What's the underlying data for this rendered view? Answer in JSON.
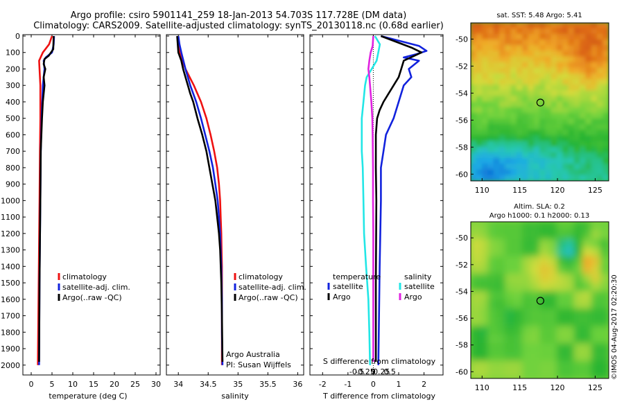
{
  "title_line1": "Argo profile: csiro 5901141_259 18-Jan-2013 54.703S 117.728E (DM data)",
  "title_line2": "Climatology: CARS2009. Satellite-adjusted climatology: synTS_20130118.nc (0.68d earlier)",
  "colors": {
    "red": "#ee1111",
    "blue": "#1122dd",
    "black": "#000000",
    "cyan": "#22e6e6",
    "magenta": "#e022e0"
  },
  "chart_data": [
    {
      "type": "line",
      "id": "temperature",
      "xlabel": "temperature (deg C)",
      "ylabel": "",
      "xlim": [
        -2,
        31
      ],
      "ylim": [
        0,
        2060
      ],
      "y_inverted": true,
      "xticks": [
        0,
        5,
        10,
        15,
        20,
        25,
        30
      ],
      "xtick_labels": [
        "0",
        "5",
        "10",
        "15",
        "20",
        "25",
        "30"
      ],
      "yticks": [
        0,
        100,
        200,
        300,
        400,
        500,
        600,
        700,
        800,
        900,
        1000,
        1100,
        1200,
        1300,
        1400,
        1500,
        1600,
        1700,
        1800,
        1900,
        2000
      ],
      "ytick_labels": [
        "0",
        "100",
        "200",
        "300",
        "400",
        "500",
        "600",
        "700",
        "800",
        "900",
        "1000",
        "1100",
        "1200",
        "1300",
        "1400",
        "1500",
        "1600",
        "1700",
        "1800",
        "1900",
        "2000"
      ],
      "legend": [
        "climatology",
        "satellite-adj. clim.",
        "Argo(..raw -QC)"
      ],
      "series": [
        {
          "name": "climatology",
          "color": "red",
          "depth": [
            0,
            50,
            100,
            150,
            200,
            300,
            500,
            700,
            1000,
            1500,
            2000
          ],
          "values": [
            5.0,
            4.3,
            2.8,
            1.9,
            2.0,
            2.2,
            2.2,
            2.1,
            2.0,
            1.8,
            1.6
          ]
        },
        {
          "name": "satellite-adj. clim.",
          "color": "blue",
          "depth": [
            0,
            50,
            100,
            130,
            150,
            200,
            300,
            500,
            700,
            1000,
            1500,
            2000
          ],
          "values": [
            5.5,
            5.4,
            5.0,
            3.5,
            3.0,
            3.2,
            2.8,
            2.5,
            2.3,
            2.2,
            2.0,
            1.9
          ]
        },
        {
          "name": "Argo(..raw -QC)",
          "color": "black",
          "depth": [
            0,
            80,
            120,
            140,
            170,
            200,
            250,
            300,
            400,
            500,
            700,
            1000,
            1500,
            1980
          ],
          "values": [
            5.4,
            5.3,
            4.2,
            3.2,
            3.0,
            3.4,
            3.0,
            3.2,
            2.8,
            2.6,
            2.3,
            2.2,
            2.0,
            1.9
          ]
        }
      ]
    },
    {
      "type": "line",
      "id": "salinity",
      "xlabel": "salinity",
      "xlim": [
        33.8,
        36.1
      ],
      "ylim": [
        0,
        2060
      ],
      "y_inverted": true,
      "xticks": [
        34,
        34.5,
        35,
        35.5,
        36
      ],
      "xtick_labels": [
        "34",
        "34.5",
        "35",
        "35.5",
        "36"
      ],
      "legend": [
        "climatology",
        "satellite-adj. clim.",
        "Argo(..raw -QC)"
      ],
      "annotation_lines": [
        "Argo Australia",
        "PI: Susan Wijffels"
      ],
      "series": [
        {
          "name": "climatology",
          "color": "red",
          "depth": [
            0,
            100,
            200,
            300,
            400,
            500,
            600,
            700,
            800,
            900,
            1000,
            1100,
            1200,
            1300,
            1400,
            1500,
            1700,
            2000
          ],
          "values": [
            34.0,
            34.02,
            34.12,
            34.26,
            34.38,
            34.47,
            34.54,
            34.6,
            34.65,
            34.68,
            34.7,
            34.71,
            34.72,
            34.725,
            34.73,
            34.73,
            34.73,
            34.73
          ]
        },
        {
          "name": "satellite-adj. clim.",
          "color": "blue",
          "depth": [
            0,
            50,
            100,
            200,
            300,
            400,
            500,
            600,
            700,
            800,
            900,
            1000,
            1100,
            1200,
            1400,
            1600,
            1800,
            2000
          ],
          "values": [
            34.0,
            34.02,
            34.05,
            34.12,
            34.2,
            34.3,
            34.38,
            34.45,
            34.52,
            34.58,
            34.62,
            34.66,
            34.68,
            34.7,
            34.72,
            34.73,
            34.73,
            34.74
          ]
        },
        {
          "name": "Argo(..raw -QC)",
          "color": "black",
          "depth": [
            0,
            100,
            150,
            200,
            250,
            300,
            350,
            400,
            500,
            600,
            700,
            800,
            900,
            1000,
            1100,
            1200,
            1300,
            1500,
            1700,
            1980
          ],
          "values": [
            33.98,
            34.0,
            34.05,
            34.08,
            34.12,
            34.16,
            34.2,
            34.25,
            34.32,
            34.4,
            34.47,
            34.52,
            34.57,
            34.62,
            34.65,
            34.68,
            34.7,
            34.72,
            34.73,
            34.74
          ]
        }
      ]
    },
    {
      "type": "line",
      "id": "difference",
      "xlabel": "T difference from climatology",
      "x2label": "S difference from climatology",
      "xlim": [
        -2.5,
        2.75
      ],
      "ylim": [
        0,
        2060
      ],
      "y_inverted": true,
      "xticks": [
        -2,
        -1,
        0,
        1,
        2
      ],
      "xtick_labels": [
        "-2",
        "-1",
        "0",
        "1",
        "2"
      ],
      "x2ticks": [
        -0.5,
        -0.25,
        0,
        0.25,
        0.5
      ],
      "x2tick_labels": [
        "-0.5",
        "-0.25",
        "0",
        "0.25",
        "0.5"
      ],
      "legend_headers": [
        "temperature",
        "salinity"
      ],
      "legend_temperature": [
        "satellite",
        "Argo"
      ],
      "legend_salinity": [
        "satellite",
        "Argo"
      ],
      "series": [
        {
          "name": "temperature satellite",
          "color": "blue",
          "depth": [
            0,
            60,
            90,
            110,
            130,
            150,
            200,
            250,
            300,
            400,
            500,
            600,
            700,
            800,
            1000,
            1400,
            2000
          ],
          "values": [
            0.3,
            1.8,
            2.1,
            1.7,
            1.2,
            1.8,
            1.4,
            1.5,
            1.2,
            1.0,
            0.8,
            0.5,
            0.4,
            0.3,
            0.3,
            0.25,
            0.2
          ]
        },
        {
          "name": "temperature Argo",
          "color": "black",
          "depth": [
            0,
            70,
            100,
            150,
            200,
            250,
            300,
            350,
            400,
            450,
            500,
            600,
            700,
            800,
            1000,
            1500,
            1980
          ],
          "values": [
            0.3,
            1.5,
            1.9,
            1.2,
            1.1,
            1.0,
            0.8,
            0.6,
            0.4,
            0.25,
            0.15,
            0.1,
            0.1,
            0.1,
            0.12,
            0.1,
            0.1
          ]
        },
        {
          "name": "salinity satellite",
          "color": "cyan",
          "depth": [
            0,
            50,
            100,
            150,
            200,
            250,
            300,
            400,
            500,
            600,
            700,
            800,
            1000,
            1200,
            1400,
            1600,
            1800,
            2000
          ],
          "values": [
            0.05,
            0.2,
            0.15,
            0.1,
            -0.05,
            -0.2,
            -0.25,
            -0.3,
            -0.35,
            -0.35,
            -0.35,
            -0.32,
            -0.3,
            -0.28,
            -0.22,
            -0.15,
            -0.12,
            -0.1
          ]
        },
        {
          "name": "salinity Argo",
          "color": "magenta",
          "depth": [
            0,
            60,
            100,
            150,
            200,
            250,
            300,
            400,
            500,
            600,
            800,
            1000,
            1200,
            1400,
            1600,
            1800,
            1980
          ],
          "values": [
            0.0,
            -0.02,
            -0.08,
            -0.12,
            -0.15,
            -0.12,
            -0.1,
            -0.06,
            -0.03,
            -0.02,
            -0.01,
            -0.01,
            0.0,
            0.0,
            0.0,
            0.0,
            0.0
          ]
        }
      ]
    },
    {
      "type": "heatmap",
      "id": "sst_map",
      "title": "sat. SST: 5.48 Argo: 5.41",
      "xlim": [
        108.5,
        126.8
      ],
      "ylim": [
        -60.5,
        -48.8
      ],
      "xticks": [
        110,
        115,
        120,
        125
      ],
      "xtick_labels": [
        "110",
        "115",
        "120",
        "125"
      ],
      "yticks": [
        -50,
        -52,
        -54,
        -56,
        -58,
        -60
      ],
      "ytick_labels": [
        "-50",
        "-52",
        "-54",
        "-56",
        "-58",
        "-60"
      ],
      "marker": {
        "lon": 117.73,
        "lat": -54.7
      }
    },
    {
      "type": "heatmap",
      "id": "sla_map",
      "title_line1": "Altim. SLA: 0.2",
      "title_line2": "Argo h1000: 0.1 h2000: 0.13",
      "xlim": [
        108.5,
        126.8
      ],
      "ylim": [
        -60.5,
        -48.8
      ],
      "xticks": [
        110,
        115,
        120,
        125
      ],
      "xtick_labels": [
        "110",
        "115",
        "120",
        "125"
      ],
      "yticks": [
        -50,
        -52,
        -54,
        -56,
        -58,
        -60
      ],
      "ytick_labels": [
        "-50",
        "-52",
        "-54",
        "-56",
        "-58",
        "-60"
      ],
      "marker": {
        "lon": 117.73,
        "lat": -54.7
      }
    }
  ],
  "credit": "©IMOS 04-Aug-2017 02:20:30"
}
